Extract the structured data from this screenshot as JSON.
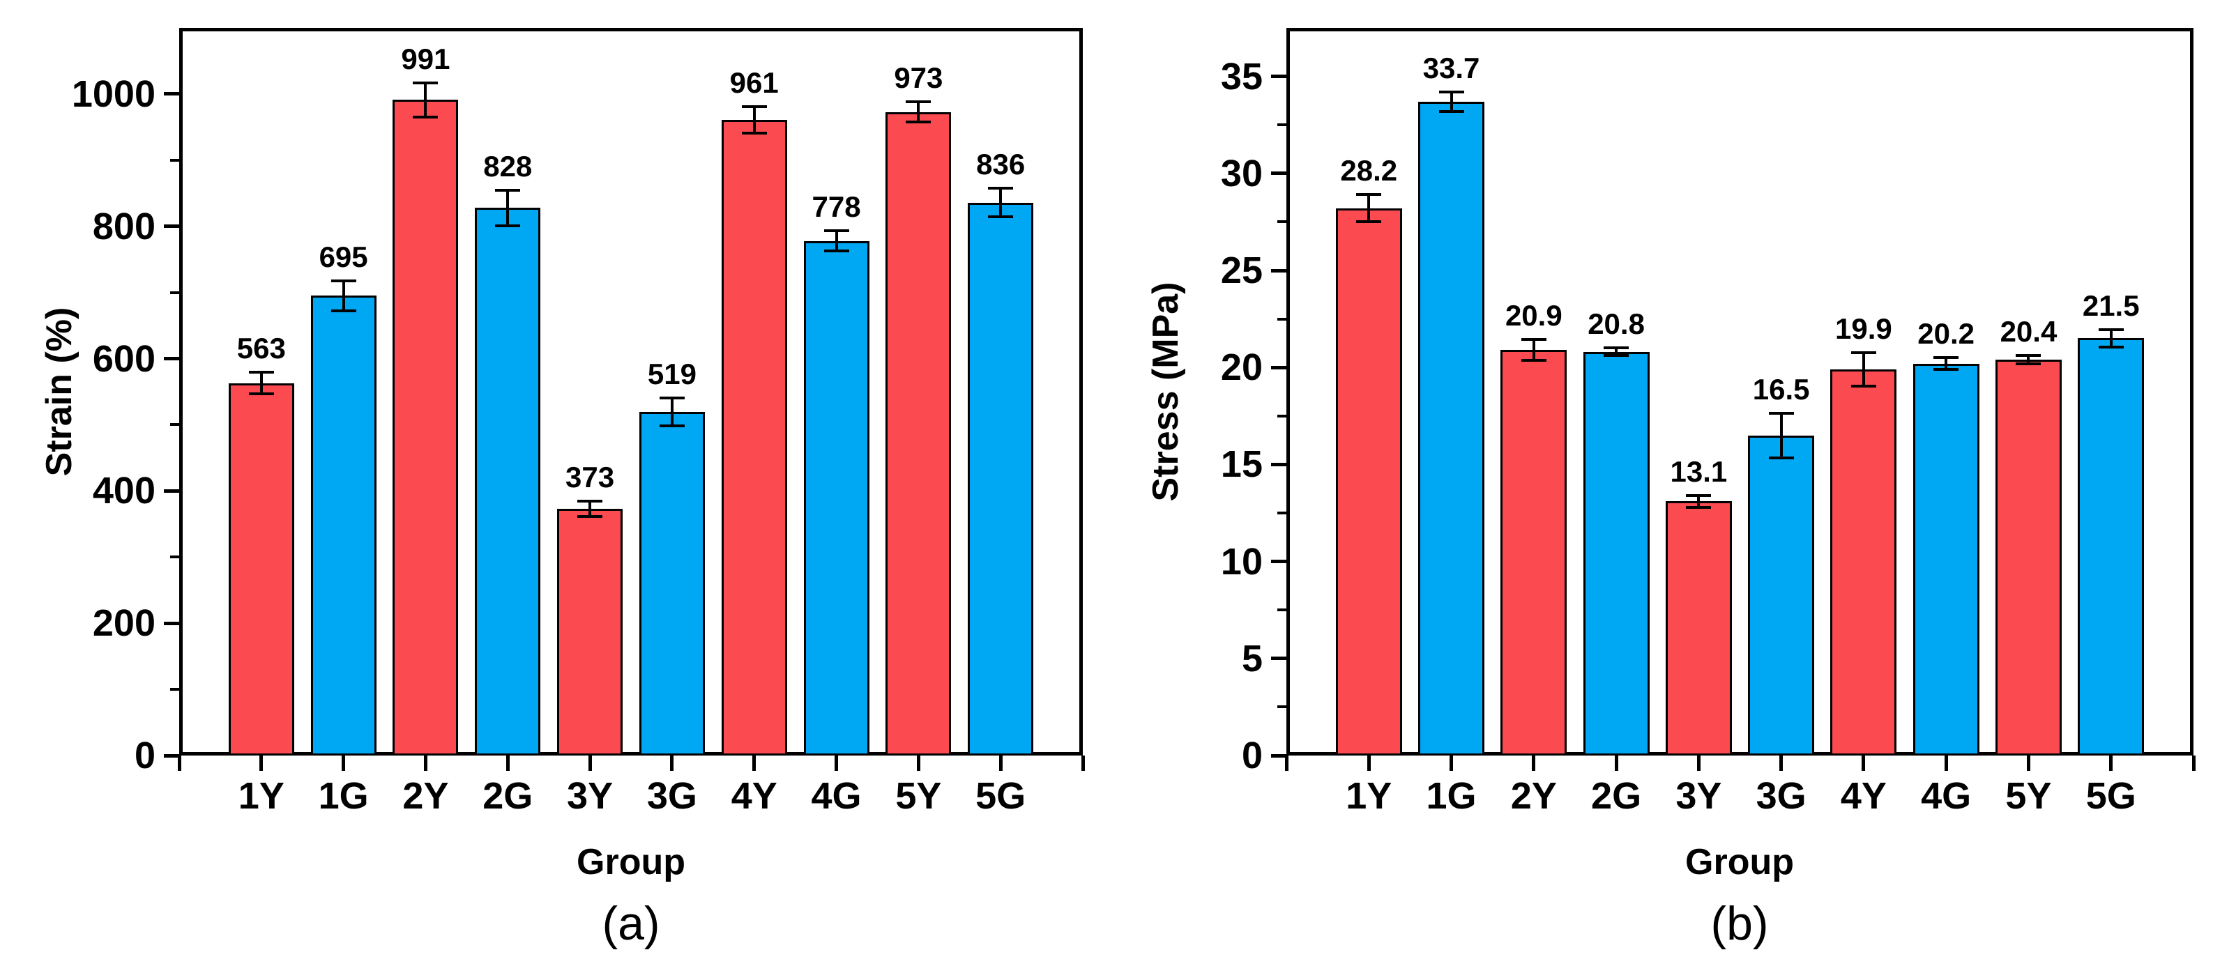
{
  "figure": {
    "description": "Two-panel bar figure with error bars",
    "panel_count": 2
  },
  "colors": {
    "bar_red": "#FC4B50",
    "bar_blue": "#00A8F4",
    "bar_outline": "#000000",
    "axis": "#000000",
    "background": "#FFFFFF"
  },
  "chart_data": [
    {
      "type": "bar",
      "panel_label": "(a)",
      "title": "",
      "xlabel": "Group",
      "ylabel": "Strain (%)",
      "categories": [
        "1Y",
        "1G",
        "2Y",
        "2G",
        "3Y",
        "3G",
        "4Y",
        "4G",
        "5Y",
        "5G"
      ],
      "values": [
        563,
        695,
        991,
        828,
        373,
        519,
        961,
        778,
        973,
        836
      ],
      "errors": [
        16,
        23,
        26,
        27,
        12,
        21,
        20,
        15,
        15,
        22
      ],
      "value_labels": [
        "563",
        "695",
        "991",
        "828",
        "373",
        "519",
        "961",
        "778",
        "973",
        "836"
      ],
      "series_colors": [
        "#FC4B50",
        "#00A8F4"
      ],
      "ylim": [
        0,
        1100
      ],
      "ytick_step": 200,
      "yminor_step": 100,
      "ytick_labels": [
        "0",
        "200",
        "400",
        "600",
        "800",
        "1000"
      ],
      "grid": false,
      "legend": null
    },
    {
      "type": "bar",
      "panel_label": "(b)",
      "title": "",
      "xlabel": "Group",
      "ylabel": "Stress (MPa)",
      "categories": [
        "1Y",
        "1G",
        "2Y",
        "2G",
        "3Y",
        "3G",
        "4Y",
        "4G",
        "5Y",
        "5G"
      ],
      "values": [
        28.2,
        33.7,
        20.9,
        20.8,
        13.1,
        16.5,
        19.9,
        20.2,
        20.4,
        21.5
      ],
      "errors": [
        0.7,
        0.5,
        0.55,
        0.2,
        0.3,
        1.15,
        0.85,
        0.3,
        0.2,
        0.45
      ],
      "value_labels": [
        "28.2",
        "33.7",
        "20.9",
        "20.8",
        "13.1",
        "16.5",
        "19.9",
        "20.2",
        "20.4",
        "21.5"
      ],
      "series_colors": [
        "#FC4B50",
        "#00A8F4"
      ],
      "ylim": [
        0,
        37.5
      ],
      "ytick_step": 5,
      "yminor_step": 2.5,
      "ytick_labels": [
        "0",
        "5",
        "10",
        "15",
        "20",
        "25",
        "30",
        "35"
      ],
      "grid": false,
      "legend": null
    }
  ]
}
